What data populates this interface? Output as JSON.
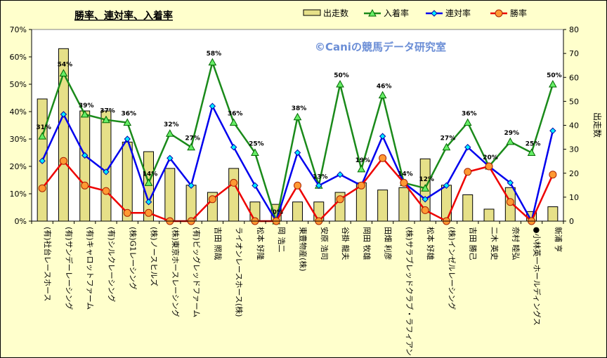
{
  "chart_data": {
    "type": "bar",
    "title": "勝率、連対率、入着率",
    "watermark": "©Caniの競馬データ研究室",
    "categories": [
      "(有)社台レースホース",
      "(有)サンデーレーシング",
      "(有)キャロットファーム",
      "(有)シルクレーシング",
      "(株)G1レーシング",
      "(株)ノースヒルズ",
      "(株)東京ホースレーシング",
      "(有)ビッグレッドファーム",
      "吉田 照哉",
      "ライオンレースホース(株)",
      "松本 好隆",
      "岡 浩二",
      "東豊物産(株)",
      "安原 浩司",
      "谷掛 龍夫",
      "岡田 牧雄",
      "田畑 利彦",
      "(株)サラブレッドクラブ・ラフィアン",
      "松本 好雄",
      "(株)インゼルレーシング",
      "吉田 勝己",
      "二木 英史",
      "奈村 睦弘",
      "●小林英一ホールディングス",
      "新浦 亨"
    ],
    "series": [
      {
        "name": "出走数",
        "axis": "right",
        "type": "bar",
        "color": "#e6e088",
        "values": [
          51,
          72,
          46,
          46,
          33,
          29,
          22,
          15,
          12,
          22,
          8,
          7,
          8,
          8,
          12,
          16,
          13,
          14,
          26,
          15,
          11,
          5,
          14,
          4,
          6
        ]
      },
      {
        "name": "入着率",
        "axis": "left",
        "type": "line",
        "color": "#1a8a1a",
        "values": [
          31,
          54,
          39,
          37,
          36,
          14,
          32,
          27,
          58,
          36,
          25,
          0,
          38,
          13,
          50,
          19,
          46,
          14,
          12,
          27,
          36,
          20,
          29,
          25,
          50
        ],
        "labels": [
          "31%",
          "54%",
          "39%",
          "37%",
          "36%",
          "14%",
          "32%",
          "27%",
          "58%",
          "36%",
          "25%",
          "0%",
          "38%",
          "13%",
          "50%",
          "19%",
          "46%",
          "14%",
          "12%",
          "27%",
          "36%",
          "20%",
          "29%",
          "25%",
          "50%"
        ]
      },
      {
        "name": "連対率",
        "axis": "left",
        "type": "line",
        "color": "#0000ee",
        "values": [
          22,
          39,
          24,
          18,
          30,
          7,
          23,
          13,
          42,
          27,
          13,
          0,
          25,
          13,
          17,
          13,
          31,
          14,
          8,
          13,
          27,
          20,
          14,
          0,
          33
        ]
      },
      {
        "name": "勝率",
        "axis": "left",
        "type": "line",
        "color": "#ee0000",
        "values": [
          12,
          22,
          13,
          11,
          3,
          3,
          0,
          0,
          8,
          14,
          0,
          0,
          13,
          0,
          8,
          13,
          23,
          14,
          4,
          0,
          18,
          20,
          7,
          0,
          17
        ]
      }
    ],
    "yleft": {
      "ylim": [
        0,
        70
      ],
      "ticks": [
        "0%",
        "10%",
        "20%",
        "30%",
        "40%",
        "50%",
        "60%",
        "70%"
      ]
    },
    "yright": {
      "label": "出走数",
      "ylim": [
        0,
        80
      ],
      "ticks": [
        "0",
        "10",
        "20",
        "30",
        "40",
        "50",
        "60",
        "70",
        "80"
      ]
    },
    "legend": {
      "position": "top-right",
      "items": [
        "出走数",
        "入着率",
        "連対率",
        "勝率"
      ]
    },
    "grid": false
  }
}
